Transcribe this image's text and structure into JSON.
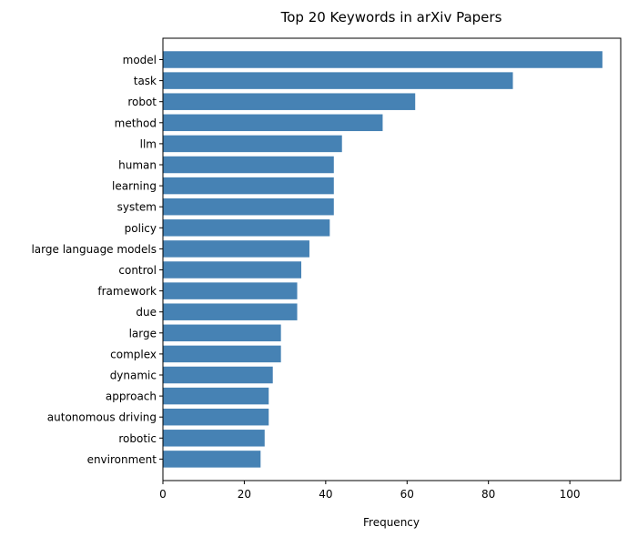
{
  "chart_data": {
    "type": "bar",
    "orientation": "horizontal",
    "title": "Top 20 Keywords in arXiv Papers",
    "xlabel": "Frequency",
    "ylabel": "",
    "xlim": [
      0,
      112.5
    ],
    "xticks": [
      0,
      20,
      40,
      60,
      80,
      100
    ],
    "grid": false,
    "bar_color": "#4682b4",
    "categories": [
      "model",
      "task",
      "robot",
      "method",
      "llm",
      "human",
      "learning",
      "system",
      "policy",
      "large language models",
      "control",
      "framework",
      "due",
      "large",
      "complex",
      "dynamic",
      "approach",
      "autonomous driving",
      "robotic",
      "environment"
    ],
    "values": [
      108,
      86,
      62,
      54,
      44,
      42,
      42,
      42,
      41,
      36,
      34,
      33,
      33,
      29,
      29,
      27,
      26,
      26,
      25,
      24
    ]
  }
}
